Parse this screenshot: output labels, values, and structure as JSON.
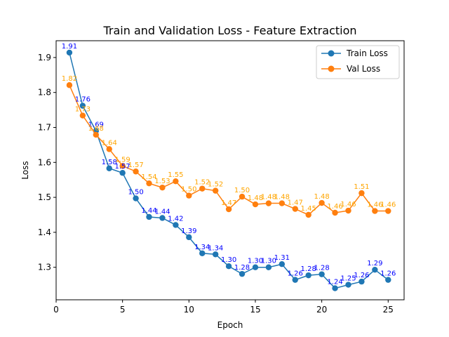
{
  "chart_data": {
    "type": "line",
    "title": "Train and Validation Loss - Feature Extraction",
    "xlabel": "Epoch",
    "ylabel": "Loss",
    "xlim": [
      0,
      26.2
    ],
    "ylim": [
      1.207,
      1.948
    ],
    "xticks": [
      0,
      5,
      10,
      15,
      20,
      25
    ],
    "yticks": [
      1.3,
      1.4,
      1.5,
      1.6,
      1.7,
      1.8,
      1.9
    ],
    "xtick_labels": [
      "0",
      "5",
      "10",
      "15",
      "20",
      "25"
    ],
    "ytick_labels": [
      "1.3",
      "1.4",
      "1.5",
      "1.6",
      "1.7",
      "1.8",
      "1.9"
    ],
    "grid": false,
    "legend_position": "upper right",
    "x": [
      1,
      2,
      3,
      4,
      5,
      6,
      7,
      8,
      9,
      10,
      11,
      12,
      13,
      14,
      15,
      16,
      17,
      18,
      19,
      20,
      21,
      22,
      23,
      24,
      25
    ],
    "series": [
      {
        "name": "Train Loss",
        "color": "#1f77b4",
        "label_color": "#0000ff",
        "values": [
          1.914,
          1.762,
          1.69,
          1.583,
          1.57,
          1.497,
          1.444,
          1.441,
          1.421,
          1.386,
          1.34,
          1.337,
          1.303,
          1.281,
          1.3,
          1.3,
          1.309,
          1.264,
          1.277,
          1.28,
          1.24,
          1.25,
          1.259,
          1.293,
          1.264
        ],
        "labels": [
          "1.91",
          "1.76",
          "1.69",
          "1.58",
          "1.57",
          "1.50",
          "1.44",
          "1.44",
          "1.42",
          "1.39",
          "1.34",
          "1.34",
          "1.30",
          "1.28",
          "1.30",
          "1.30",
          "1.31",
          "1.26",
          "1.28",
          "1.28",
          "1.24",
          "1.25",
          "1.26",
          "1.29",
          "1.26"
        ]
      },
      {
        "name": "Val Loss",
        "color": "#ff7f0e",
        "label_color": "#ffa500",
        "values": [
          1.821,
          1.734,
          1.679,
          1.638,
          1.59,
          1.574,
          1.54,
          1.528,
          1.546,
          1.505,
          1.525,
          1.519,
          1.466,
          1.502,
          1.48,
          1.483,
          1.483,
          1.467,
          1.45,
          1.484,
          1.456,
          1.462,
          1.512,
          1.461,
          1.461
        ],
        "labels": [
          "1.82",
          "1.73",
          "1.68",
          "1.64",
          "1.59",
          "1.57",
          "1.54",
          "1.53",
          "1.55",
          "1.50",
          "1.52",
          "1.52",
          "1.47",
          "1.50",
          "1.48",
          "1.48",
          "1.48",
          "1.47",
          "1.45",
          "1.48",
          "1.46",
          "1.46",
          "1.51",
          "1.46",
          "1.46"
        ]
      }
    ]
  }
}
